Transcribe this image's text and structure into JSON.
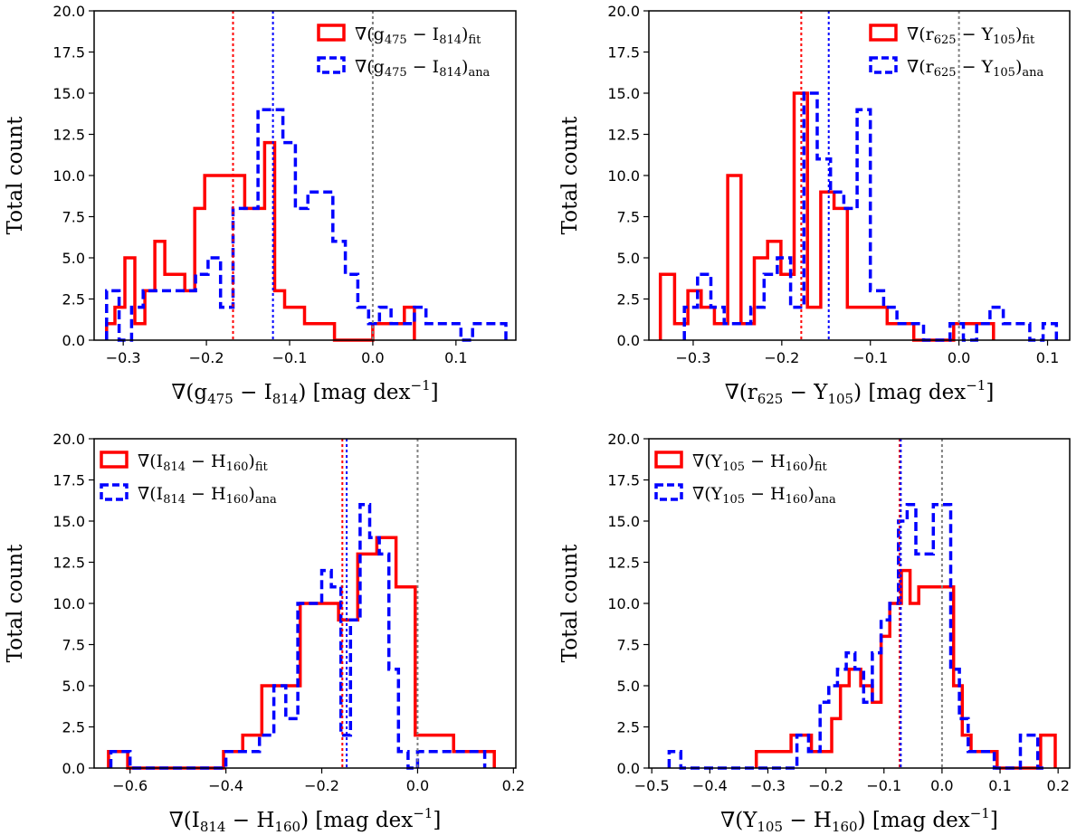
{
  "figure": {
    "colors": {
      "fit": "#ff0000",
      "ana": "#0000ff",
      "zero": "#808080",
      "frame": "#000000"
    }
  },
  "chart_data": [
    {
      "id": "g475-I814",
      "type": "histogram",
      "xlabel": "∇(g₄₇₅ − I₈₁₄) [mag dex⁻¹]",
      "ylabel": "Total count",
      "xlim": [
        -0.335,
        0.172
      ],
      "ylim": [
        0,
        20
      ],
      "xticks": [
        -0.3,
        -0.2,
        -0.1,
        0.0,
        0.1
      ],
      "xtick_labels": [
        "−0.3",
        "−0.2",
        "−0.1",
        "0.0",
        "0.1"
      ],
      "yticks": [
        0,
        2.5,
        5,
        7.5,
        10,
        12.5,
        15,
        17.5,
        20
      ],
      "ytick_labels": [
        "0.0",
        "2.5",
        "5.0",
        "7.5",
        "10.0",
        "12.5",
        "15.0",
        "17.5",
        "20.0"
      ],
      "legend_position": "upper-right",
      "series": [
        {
          "name": "∇(g₄₇₅ − I₈₁₄)fit",
          "style": "solid",
          "color": "#ff0000",
          "edges": [
            -0.32,
            -0.31,
            -0.298,
            -0.286,
            -0.274,
            -0.262,
            -0.25,
            -0.238,
            -0.226,
            -0.214,
            -0.202,
            -0.19,
            -0.178,
            -0.166,
            -0.154,
            -0.142,
            -0.13,
            -0.118,
            -0.106,
            -0.094,
            -0.082,
            -0.07,
            -0.058,
            -0.046,
            -0.034,
            -0.022,
            -0.01,
            0.0,
            0.014,
            0.026,
            0.038,
            0.05
          ],
          "counts": [
            1,
            2,
            5,
            1,
            3,
            6,
            4,
            4,
            3,
            8,
            10,
            10,
            10,
            10,
            8,
            8,
            12,
            3,
            2,
            2,
            1,
            1,
            1,
            0,
            0,
            0,
            0,
            1,
            1,
            1,
            2
          ]
        },
        {
          "name": "∇(g₄₇₅ − I₈₁₄)ana",
          "style": "dashed",
          "color": "#0000ff",
          "edges": [
            -0.32,
            -0.305,
            -0.29,
            -0.276,
            -0.258,
            -0.243,
            -0.228,
            -0.213,
            -0.198,
            -0.183,
            -0.168,
            -0.153,
            -0.138,
            -0.123,
            -0.108,
            -0.093,
            -0.078,
            -0.063,
            -0.048,
            -0.033,
            -0.018,
            -0.005,
            0.008,
            0.022,
            0.036,
            0.05,
            0.064,
            0.078,
            0.092,
            0.106,
            0.12,
            0.134,
            0.148,
            0.16
          ],
          "counts": [
            3,
            0,
            2,
            3,
            3,
            3,
            3,
            4,
            5,
            2,
            8,
            8,
            14,
            14,
            12,
            8,
            9,
            9,
            6,
            4,
            2,
            1,
            2,
            1,
            1,
            2,
            1,
            1,
            1,
            0,
            1,
            1,
            1
          ]
        }
      ],
      "vlines": [
        {
          "name": "fit-median",
          "x": -0.168,
          "color": "#ff0000"
        },
        {
          "name": "ana-median",
          "x": -0.12,
          "color": "#0000ff"
        },
        {
          "name": "zero",
          "x": 0.0,
          "color": "#808080"
        }
      ],
      "legend": [
        {
          "series": "fit",
          "base": "∇(g",
          "sub1": "475",
          "mid": " − I",
          "sub2": "814",
          "close": ")",
          "tag": "fit"
        },
        {
          "series": "ana",
          "base": "∇(g",
          "sub1": "475",
          "mid": " − I",
          "sub2": "814",
          "close": ")",
          "tag": "ana"
        }
      ],
      "xlabel_parts": {
        "base": "∇(g",
        "sub1": "475",
        "mid": " − I",
        "sub2": "814",
        "tail": ") [mag dex",
        "sup": "−1",
        "end": "]"
      }
    },
    {
      "id": "r625-Y105",
      "type": "histogram",
      "xlabel": "∇(r₆₂₅ − Y₁₀₅) [mag dex⁻¹]",
      "ylabel": "Total count",
      "xlim": [
        -0.35,
        0.125
      ],
      "ylim": [
        0,
        20
      ],
      "xticks": [
        -0.3,
        -0.2,
        -0.1,
        0.0,
        0.1
      ],
      "xtick_labels": [
        "−0.3",
        "−0.2",
        "−0.1",
        "0.0",
        "0.1"
      ],
      "yticks": [
        0,
        2.5,
        5,
        7.5,
        10,
        12.5,
        15,
        17.5,
        20
      ],
      "ytick_labels": [
        "0.0",
        "2.5",
        "5.0",
        "7.5",
        "10.0",
        "12.5",
        "15.0",
        "17.5",
        "20.0"
      ],
      "legend_position": "upper-right",
      "series": [
        {
          "name": "∇(r₆₂₅ − Y₁₀₅)fit",
          "style": "solid",
          "color": "#ff0000",
          "edges": [
            -0.337,
            -0.321,
            -0.306,
            -0.291,
            -0.276,
            -0.261,
            -0.246,
            -0.231,
            -0.216,
            -0.201,
            -0.186,
            -0.171,
            -0.156,
            -0.141,
            -0.126,
            -0.111,
            -0.096,
            -0.081,
            -0.066,
            -0.051,
            -0.036,
            -0.021,
            -0.006,
            0.009,
            0.024,
            0.039
          ],
          "counts": [
            4,
            1,
            3,
            2,
            1,
            10,
            1,
            5,
            6,
            4,
            15,
            2,
            9,
            8,
            2,
            2,
            2,
            1,
            1,
            0,
            0,
            0,
            1,
            1,
            1
          ]
        },
        {
          "name": "∇(r₆₂₅ − Y₁₀₅)ana",
          "style": "dashed",
          "color": "#0000ff",
          "edges": [
            -0.31,
            -0.295,
            -0.28,
            -0.265,
            -0.25,
            -0.235,
            -0.22,
            -0.205,
            -0.19,
            -0.175,
            -0.16,
            -0.145,
            -0.13,
            -0.115,
            -0.1,
            -0.085,
            -0.07,
            -0.055,
            -0.04,
            -0.025,
            -0.01,
            0.005,
            0.02,
            0.035,
            0.05,
            0.065,
            0.08,
            0.095,
            0.11
          ],
          "counts": [
            2,
            4,
            2,
            1,
            1,
            2,
            4,
            5,
            2,
            15,
            11,
            9,
            8,
            14,
            3,
            2,
            1,
            1,
            0,
            0,
            1,
            0,
            1,
            2,
            1,
            1,
            0,
            1
          ]
        }
      ],
      "vlines": [
        {
          "name": "fit-median",
          "x": -0.178,
          "color": "#ff0000"
        },
        {
          "name": "ana-median",
          "x": -0.147,
          "color": "#0000ff"
        },
        {
          "name": "zero",
          "x": 0.0,
          "color": "#808080"
        }
      ],
      "legend": [
        {
          "series": "fit",
          "base": "∇(r",
          "sub1": "625",
          "mid": " − Y",
          "sub2": "105",
          "close": ")",
          "tag": "fit"
        },
        {
          "series": "ana",
          "base": "∇(r",
          "sub1": "625",
          "mid": " − Y",
          "sub2": "105",
          "close": ")",
          "tag": "ana"
        }
      ],
      "xlabel_parts": {
        "base": "∇(r",
        "sub1": "625",
        "mid": " − Y",
        "sub2": "105",
        "tail": ") [mag dex",
        "sup": "−1",
        "end": "]"
      }
    },
    {
      "id": "I814-H160",
      "type": "histogram",
      "xlabel": "∇(I₈₁₄ − H₁₆₀) [mag dex⁻¹]",
      "ylabel": "Total count",
      "xlim": [
        -0.675,
        0.205
      ],
      "ylim": [
        0,
        20
      ],
      "xticks": [
        -0.6,
        -0.4,
        -0.2,
        0.0,
        0.2
      ],
      "xtick_labels": [
        "−0.6",
        "−0.4",
        "−0.2",
        "0.0",
        "0.2"
      ],
      "yticks": [
        0,
        2.5,
        5,
        7.5,
        10,
        12.5,
        15,
        17.5,
        20
      ],
      "ytick_labels": [
        "0.0",
        "2.5",
        "5.0",
        "7.5",
        "10.0",
        "12.5",
        "15.0",
        "17.5",
        "20.0"
      ],
      "legend_position": "upper-left",
      "series": [
        {
          "name": "∇(I₈₁₄ − H₁₆₀)fit",
          "style": "solid",
          "color": "#ff0000",
          "edges": [
            -0.645,
            -0.605,
            -0.565,
            -0.525,
            -0.485,
            -0.445,
            -0.405,
            -0.365,
            -0.325,
            -0.285,
            -0.245,
            -0.205,
            -0.165,
            -0.125,
            -0.085,
            -0.045,
            -0.005,
            0.035,
            0.075,
            0.115,
            0.16
          ],
          "counts": [
            1,
            0,
            0,
            0,
            0,
            0,
            1,
            2,
            5,
            5,
            10,
            10,
            9,
            13,
            14,
            11,
            2,
            2,
            1,
            1
          ]
        },
        {
          "name": "∇(I₈₁₄ − H₁₆₀)ana",
          "style": "dashed",
          "color": "#0000ff",
          "edges": [
            -0.64,
            -0.6,
            -0.56,
            -0.52,
            -0.48,
            -0.44,
            -0.4,
            -0.38,
            -0.36,
            -0.33,
            -0.3,
            -0.275,
            -0.25,
            -0.225,
            -0.2,
            -0.18,
            -0.16,
            -0.14,
            -0.12,
            -0.1,
            -0.08,
            -0.06,
            -0.04,
            -0.02,
            0.0,
            0.02,
            0.04,
            0.06,
            0.08,
            0.1,
            0.12,
            0.14
          ],
          "counts": [
            1,
            0,
            0,
            0,
            0,
            0,
            1,
            1,
            1,
            2,
            5,
            3,
            10,
            10,
            12,
            11,
            2,
            9,
            16,
            14,
            13,
            6,
            1,
            0,
            1,
            1,
            1,
            1,
            1,
            1,
            1
          ]
        }
      ],
      "vlines": [
        {
          "name": "fit-median",
          "x": -0.157,
          "color": "#ff0000"
        },
        {
          "name": "ana-median",
          "x": -0.148,
          "color": "#0000ff"
        },
        {
          "name": "zero",
          "x": 0.0,
          "color": "#808080"
        }
      ],
      "legend": [
        {
          "series": "fit",
          "base": "∇(I",
          "sub1": "814",
          "mid": " − H",
          "sub2": "160",
          "close": ")",
          "tag": "fit"
        },
        {
          "series": "ana",
          "base": "∇(I",
          "sub1": "814",
          "mid": " − H",
          "sub2": "160",
          "close": ")",
          "tag": "ana"
        }
      ],
      "xlabel_parts": {
        "base": "∇(I",
        "sub1": "814",
        "mid": " − H",
        "sub2": "160",
        "tail": ") [mag dex",
        "sup": "−1",
        "end": "]"
      }
    },
    {
      "id": "Y105-H160",
      "type": "histogram",
      "xlabel": "∇(Y₁₀₅ − H₁₆₀) [mag dex⁻¹]",
      "ylabel": "Total count",
      "xlim": [
        -0.505,
        0.22
      ],
      "ylim": [
        0,
        20
      ],
      "xticks": [
        -0.5,
        -0.4,
        -0.3,
        -0.2,
        -0.1,
        0.0,
        0.1,
        0.2
      ],
      "xtick_labels": [
        "−0.5",
        "−0.4",
        "−0.3",
        "−0.2",
        "−0.1",
        "0.0",
        "0.1",
        "0.2"
      ],
      "yticks": [
        0,
        2.5,
        5,
        7.5,
        10,
        12.5,
        15,
        17.5,
        20
      ],
      "ytick_labels": [
        "0.0",
        "2.5",
        "5.0",
        "7.5",
        "10.0",
        "12.5",
        "15.0",
        "17.5",
        "20.0"
      ],
      "legend_position": "upper-left",
      "series": [
        {
          "name": "∇(Y₁₀₅ − H₁₆₀)fit",
          "style": "solid",
          "color": "#ff0000",
          "edges": [
            -0.32,
            -0.29,
            -0.26,
            -0.225,
            -0.19,
            -0.175,
            -0.16,
            -0.14,
            -0.12,
            -0.105,
            -0.09,
            -0.07,
            -0.055,
            -0.04,
            -0.025,
            -0.01,
            0.02,
            0.035,
            0.05,
            0.065,
            0.08,
            0.095,
            0.115,
            0.13,
            0.15,
            0.17,
            0.18,
            0.195
          ],
          "counts": [
            1,
            1,
            2,
            1,
            3,
            5,
            6,
            5,
            4,
            8,
            10,
            12,
            10,
            11,
            11,
            11,
            5,
            2,
            1,
            1,
            1,
            0,
            0,
            0,
            0,
            2,
            2
          ]
        },
        {
          "name": "∇(Y₁₀₅ − H₁₆₀)ana",
          "style": "dashed",
          "color": "#0000ff",
          "edges": [
            -0.47,
            -0.45,
            -0.43,
            -0.41,
            -0.39,
            -0.37,
            -0.35,
            -0.33,
            -0.31,
            -0.29,
            -0.27,
            -0.25,
            -0.23,
            -0.21,
            -0.195,
            -0.18,
            -0.165,
            -0.15,
            -0.135,
            -0.12,
            -0.105,
            -0.09,
            -0.075,
            -0.06,
            -0.045,
            -0.03,
            -0.015,
            0.0,
            0.015,
            0.03,
            0.045,
            0.06,
            0.075,
            0.09,
            0.105,
            0.12,
            0.135,
            0.15,
            0.165,
            0.18
          ],
          "counts": [
            1,
            0,
            0,
            0,
            0,
            0,
            0,
            0,
            0,
            0,
            0,
            2,
            1,
            4,
            5,
            6,
            7,
            6,
            4,
            7,
            9,
            10,
            15,
            16,
            13,
            13,
            16,
            16,
            6,
            3,
            1,
            1,
            1,
            0,
            0,
            0,
            2,
            2,
            0
          ]
        }
      ],
      "vlines": [
        {
          "name": "fit-median",
          "x": -0.073,
          "color": "#ff0000"
        },
        {
          "name": "ana-median",
          "x": -0.071,
          "color": "#0000ff"
        },
        {
          "name": "zero",
          "x": 0.0,
          "color": "#808080"
        }
      ],
      "legend": [
        {
          "series": "fit",
          "base": "∇(Y",
          "sub1": "105",
          "mid": " − H",
          "sub2": "160",
          "close": ")",
          "tag": "fit"
        },
        {
          "series": "ana",
          "base": "∇(Y",
          "sub1": "105",
          "mid": " − H",
          "sub2": "160",
          "close": ")",
          "tag": "ana"
        }
      ],
      "xlabel_parts": {
        "base": "∇(Y",
        "sub1": "105",
        "mid": " − H",
        "sub2": "160",
        "tail": ") [mag dex",
        "sup": "−1",
        "end": "]"
      }
    }
  ]
}
